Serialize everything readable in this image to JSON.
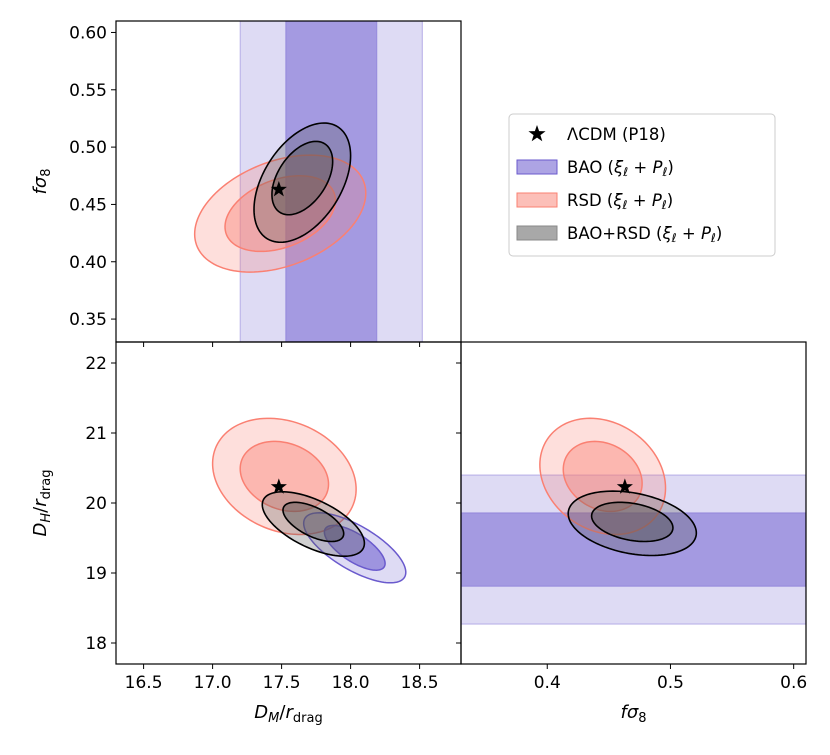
{
  "chart_data": {
    "type": "corner",
    "colors": {
      "bao": "#6a5acd",
      "rsd": "#fa8072",
      "combined": "#555555",
      "star": "#000000"
    },
    "legend": [
      {
        "key": "lcdm",
        "label": "ΛCDM (P18)",
        "icon": "star-icon"
      },
      {
        "key": "bao",
        "label": "BAO (ξℓ + Pℓ)",
        "icon": "patch"
      },
      {
        "key": "rsd",
        "label": "RSD (ξℓ + Pℓ)",
        "icon": "patch"
      },
      {
        "key": "combined",
        "label": "BAO+RSD (ξℓ + Pℓ)",
        "icon": "patch"
      }
    ],
    "fiducial": {
      "DM": 17.48,
      "DH": 20.23,
      "fs8": 0.463
    },
    "panels": [
      {
        "id": "dm-fs8",
        "xvar": "DM",
        "yvar": "fs8",
        "xlim": [
          16.3,
          18.8
        ],
        "ylim": [
          0.33,
          0.61
        ],
        "xlabel": "",
        "ylabel": "fσ8",
        "xticks": [],
        "yticks": [
          "0.35",
          "0.40",
          "0.45",
          "0.50",
          "0.55",
          "0.60"
        ],
        "bands": [
          {
            "series": "bao",
            "level": "2sigma",
            "axis": "x",
            "range": [
              17.2,
              18.52
            ]
          },
          {
            "series": "bao",
            "level": "1sigma",
            "axis": "x",
            "range": [
              17.53,
              18.19
            ]
          }
        ],
        "ellipses": [
          {
            "series": "rsd",
            "level": "2sigma",
            "cx": 17.49,
            "cy": 0.442,
            "sx": 0.62,
            "sy": 0.051,
            "rho": 0.35
          },
          {
            "series": "rsd",
            "level": "1sigma",
            "cx": 17.49,
            "cy": 0.442,
            "sx": 0.4,
            "sy": 0.033,
            "rho": 0.35
          },
          {
            "series": "combined",
            "level": "2sigma",
            "cx": 17.65,
            "cy": 0.469,
            "sx": 0.35,
            "sy": 0.052,
            "rho": 0.45
          },
          {
            "series": "combined",
            "level": "1sigma",
            "cx": 17.65,
            "cy": 0.473,
            "sx": 0.22,
            "sy": 0.032,
            "rho": 0.45
          }
        ]
      },
      {
        "id": "dm-dh",
        "xvar": "DM",
        "yvar": "DH",
        "xlim": [
          16.3,
          18.8
        ],
        "ylim": [
          17.7,
          22.3
        ],
        "xlabel": "DM/rdrag",
        "ylabel": "DH/rdrag",
        "xticks": [
          "16.5",
          "17.0",
          "17.5",
          "18.0",
          "18.5"
        ],
        "yticks": [
          "18",
          "19",
          "20",
          "21",
          "22"
        ],
        "bands": [],
        "ellipses": [
          {
            "series": "rsd",
            "level": "2sigma",
            "cx": 17.52,
            "cy": 20.38,
            "sx": 0.52,
            "sy": 0.83,
            "rho": -0.22
          },
          {
            "series": "rsd",
            "level": "1sigma",
            "cx": 17.52,
            "cy": 20.38,
            "sx": 0.32,
            "sy": 0.5,
            "rho": -0.22
          },
          {
            "series": "bao",
            "level": "2sigma",
            "cx": 18.03,
            "cy": 19.36,
            "sx": 0.37,
            "sy": 0.5,
            "rho": -0.7
          },
          {
            "series": "bao",
            "level": "1sigma",
            "cx": 18.03,
            "cy": 19.36,
            "sx": 0.22,
            "sy": 0.32,
            "rho": -0.7
          },
          {
            "series": "combined",
            "level": "2sigma",
            "cx": 17.73,
            "cy": 19.7,
            "sx": 0.37,
            "sy": 0.46,
            "rho": -0.6
          },
          {
            "series": "combined",
            "level": "1sigma",
            "cx": 17.73,
            "cy": 19.73,
            "sx": 0.22,
            "sy": 0.28,
            "rho": -0.6
          }
        ]
      },
      {
        "id": "fs8-dh",
        "xvar": "fs8",
        "yvar": "DH",
        "xlim": [
          0.33,
          0.61
        ],
        "ylim": [
          17.7,
          22.3
        ],
        "xlabel": "fσ8",
        "ylabel": "",
        "xticks": [
          "0.4",
          "0.5",
          "0.6"
        ],
        "yticks": [],
        "bands": [
          {
            "series": "bao",
            "level": "2sigma",
            "axis": "y",
            "range": [
              18.27,
              20.4
            ]
          },
          {
            "series": "bao",
            "level": "1sigma",
            "axis": "y",
            "range": [
              18.81,
              19.86
            ]
          }
        ],
        "ellipses": [
          {
            "series": "rsd",
            "level": "2sigma",
            "cx": 0.445,
            "cy": 20.38,
            "sx": 0.051,
            "sy": 0.83,
            "rho": -0.2
          },
          {
            "series": "rsd",
            "level": "1sigma",
            "cx": 0.445,
            "cy": 20.38,
            "sx": 0.032,
            "sy": 0.5,
            "rho": -0.2
          },
          {
            "series": "combined",
            "level": "2sigma",
            "cx": 0.469,
            "cy": 19.71,
            "sx": 0.052,
            "sy": 0.46,
            "rho": -0.3
          },
          {
            "series": "combined",
            "level": "1sigma",
            "cx": 0.469,
            "cy": 19.73,
            "sx": 0.033,
            "sy": 0.28,
            "rho": -0.3
          }
        ]
      }
    ]
  }
}
